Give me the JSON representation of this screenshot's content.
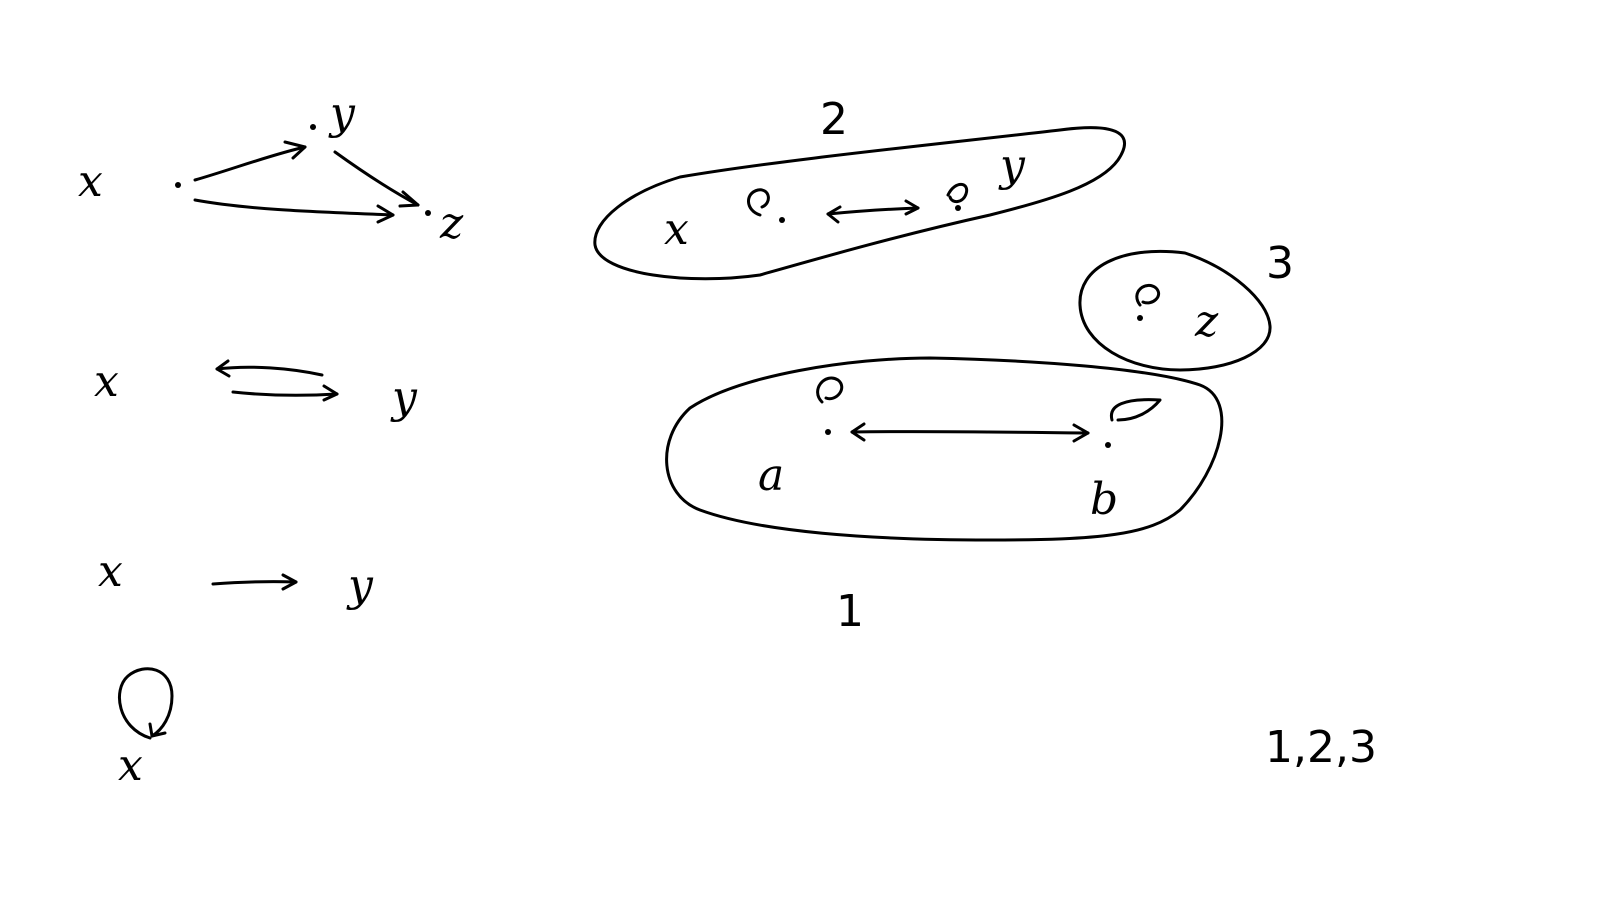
{
  "colors": {
    "ink": "#000000",
    "background": "#ffffff"
  },
  "graph_triangle": {
    "nodes": [
      "x",
      "y",
      "z"
    ]
  },
  "graph_two_way": {
    "from": "x",
    "to": "y"
  },
  "graph_one_way": {
    "from": "x",
    "to": "y"
  },
  "graph_self_loop": {
    "node": "x"
  },
  "components": [
    {
      "number": "2",
      "nodes": [
        "x",
        "y"
      ]
    },
    {
      "number": "3",
      "nodes": [
        "z"
      ]
    },
    {
      "number": "1",
      "nodes": [
        "a",
        "b"
      ]
    }
  ],
  "order_label": "1,2,3"
}
